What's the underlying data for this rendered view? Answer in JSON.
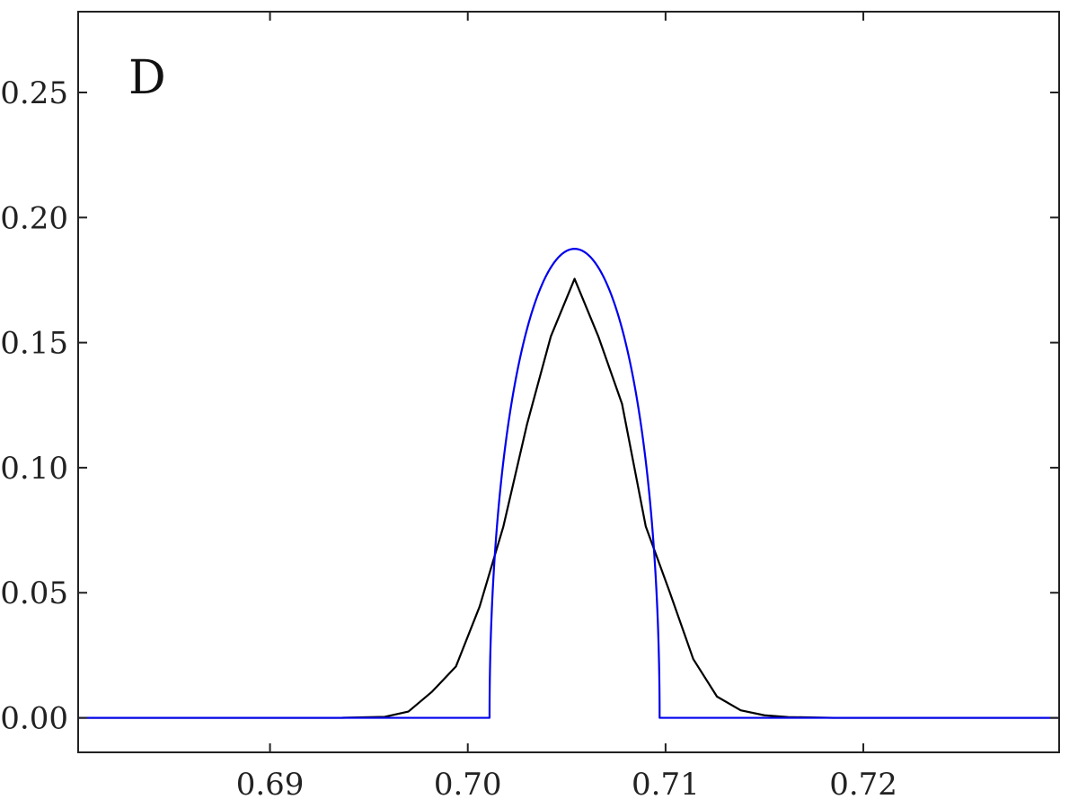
{
  "chart_data": {
    "type": "line",
    "panel_label": "D",
    "title": "",
    "xlabel": "",
    "ylabel": "",
    "xlim": [
      0.6803,
      0.7299
    ],
    "ylim": [
      -0.0138,
      0.2823
    ],
    "grid": false,
    "x_ticks": [
      0.69,
      0.7,
      0.71,
      0.72
    ],
    "x_tick_labels": [
      "0.69",
      "0.70",
      "0.71",
      "0.72"
    ],
    "y_ticks": [
      0.0,
      0.05,
      0.1,
      0.15,
      0.2,
      0.25
    ],
    "y_tick_labels": [
      "0.00",
      "0.05",
      "0.10",
      "0.15",
      "0.20",
      "0.25"
    ],
    "series": [
      {
        "color": "#000000",
        "x": [
          0.6803,
          0.6936,
          0.6958,
          0.697,
          0.6982,
          0.6994,
          0.7006,
          0.7018,
          0.703,
          0.7042,
          0.7054,
          0.7066,
          0.7078,
          0.709,
          0.7102,
          0.7114,
          0.7126,
          0.7138,
          0.715,
          0.7162,
          0.7185,
          0.7299
        ],
        "y": [
          0.0,
          0.0,
          0.0004,
          0.0025,
          0.0105,
          0.0205,
          0.0445,
          0.0765,
          0.1175,
          0.1525,
          0.1755,
          0.1525,
          0.1255,
          0.0765,
          0.0505,
          0.0235,
          0.0085,
          0.003,
          0.001,
          0.0003,
          0.0,
          0.0
        ]
      },
      {
        "color": "#0000ee",
        "shape": "semi-ellipse",
        "x_start": 0.7011,
        "x_end": 0.7097,
        "peak_x": 0.7054,
        "peak_y": 0.1875,
        "baseline": 0.0
      }
    ]
  }
}
